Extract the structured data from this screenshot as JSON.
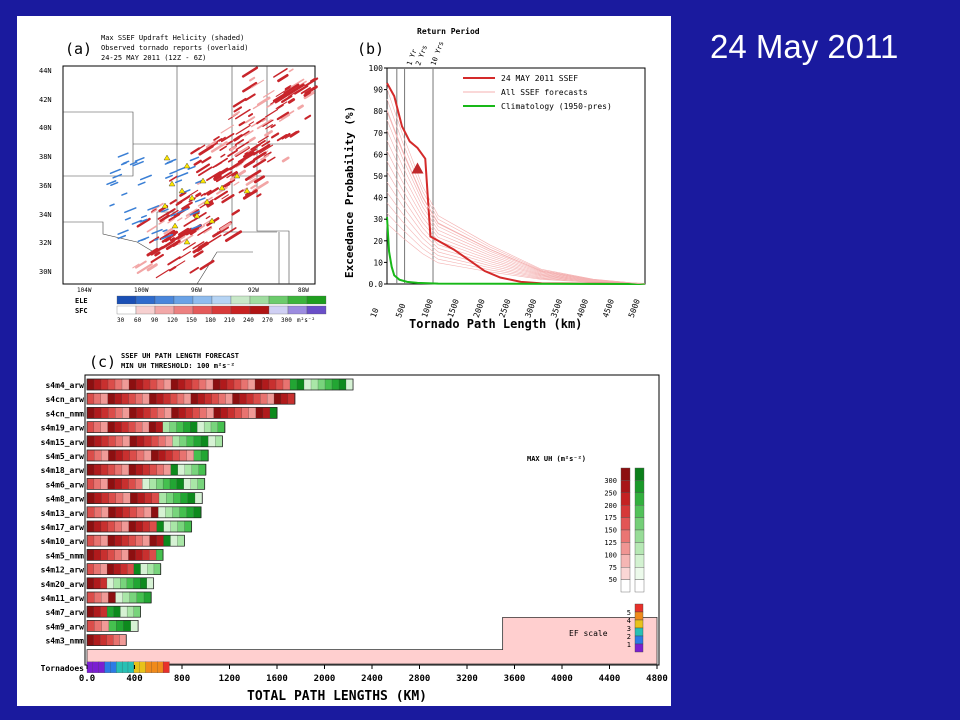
{
  "slide": {
    "title": "24 May 2011"
  },
  "panel_a": {
    "tag": "(a)",
    "title_lines": [
      "Max SSEF Updraft Helicity (shaded)",
      "Observed tornado reports (overlaid)",
      "24-25 MAY 2011 (12Z - 6Z)"
    ],
    "lat_labels": [
      "44N",
      "42N",
      "40N",
      "38N",
      "36N",
      "34N",
      "32N",
      "30N"
    ],
    "lon_labels": [
      "104W",
      "100W",
      "96W",
      "92W",
      "88W"
    ],
    "legend_rows": [
      "ELE",
      "SFC"
    ],
    "legend_ticks": [
      "30",
      "60",
      "90",
      "120",
      "150",
      "180",
      "210",
      "240",
      "270",
      "300"
    ],
    "legend_unit": "m²s⁻²",
    "colors": {
      "uh_red": "#c8252b",
      "uh_blue": "#3a7fd5",
      "tornado": "#ffe800"
    }
  },
  "panel_b": {
    "tag": "(b)",
    "return_period_title": "Return Period",
    "return_period_labels": [
      "1 Yr",
      "2 Yrs",
      "10 Yrs"
    ],
    "ylabel": "Exceedance Probability (%)",
    "xlabel": "Tornado Path Length (km)",
    "legend": [
      "24 MAY 2011 SSEF",
      "All SSEF forecasts",
      "Climatology (1950-pres)"
    ],
    "chart_data": {
      "type": "line",
      "xlabel": "Tornado Path Length (km)",
      "ylabel": "Exceedance Probability (%)",
      "xtick_labels": [
        "10",
        "500",
        "1000",
        "1500",
        "2000",
        "2500",
        "3000",
        "3500",
        "4000",
        "4500",
        "5000"
      ],
      "ytick_labels": [
        "0.0",
        "10",
        "20",
        "30",
        "40",
        "50",
        "60",
        "70",
        "80",
        "90",
        "100"
      ],
      "xlim": [
        10,
        5000
      ],
      "ylim": [
        0,
        100
      ],
      "return_periods_km": [
        200,
        350,
        900
      ],
      "observed_marker": {
        "x": 600,
        "y": 53
      },
      "series": [
        {
          "name": "24 MAY 2011 SSEF",
          "color": "#d42a2a",
          "x": [
            10,
            150,
            300,
            450,
            600,
            750,
            850,
            1000,
            1300,
            1600,
            1900,
            2200,
            2600,
            3000,
            5000
          ],
          "y": [
            93,
            87,
            73,
            66,
            63,
            58,
            22,
            20,
            16,
            11,
            6,
            3,
            1,
            0.3,
            0
          ]
        },
        {
          "name": "Climatology (1950-pres)",
          "color": "#18b818",
          "x": [
            10,
            50,
            100,
            150,
            250,
            400,
            600,
            1000,
            5000
          ],
          "y": [
            31,
            15,
            8,
            4,
            2,
            1,
            0.5,
            0.2,
            0
          ]
        },
        {
          "name": "All SSEF forecasts",
          "color": "#f4b2b2",
          "x": [
            10,
            300,
            700,
            1000,
            1500,
            2000,
            2600,
            3000,
            4000,
            5000
          ],
          "y": [
            80,
            62,
            40,
            28,
            22,
            16,
            10,
            6,
            2,
            0
          ]
        }
      ]
    }
  },
  "panel_c": {
    "tag": "(c)",
    "title_lines": [
      "SSEF UH PATH LENGTH FORECAST",
      "MIN UH THRESHOLD: 100 m²s⁻²"
    ],
    "xlabel": "TOTAL PATH LENGTHS (KM)",
    "legend_title": "MAX UH (m²s⁻²)",
    "legend_values": [
      "300",
      "250",
      "200",
      "175",
      "150",
      "125",
      "100",
      "75",
      "50"
    ],
    "ef_label": "EF scale",
    "ef_values": [
      "5",
      "4",
      "3",
      "2",
      "1"
    ],
    "chart_data": {
      "type": "bar",
      "xlim": [
        0,
        4800
      ],
      "xtick_labels": [
        "0.0",
        "400",
        "800",
        "1200",
        "1600",
        "2000",
        "2400",
        "2800",
        "3200",
        "3600",
        "4000",
        "4400",
        "4800"
      ],
      "categories": [
        "s4m4_arw",
        "s4cn_arw",
        "s4cn_nmm",
        "s4m19_arw",
        "s4m15_arw",
        "s4m5_arw",
        "s4m18_arw",
        "s4m6_arw",
        "s4m8_arw",
        "s4m13_arw",
        "s4m17_arw",
        "s4m10_arw",
        "s4m5_nmm",
        "s4m12_arw",
        "s4m20_arw",
        "s4m11_arw",
        "s4m7_arw",
        "s4m9_arw",
        "s4m3_nmm",
        "Tornadoes"
      ],
      "values": [
        2240,
        1750,
        1600,
        1160,
        1140,
        1020,
        1000,
        990,
        970,
        960,
        880,
        820,
        640,
        620,
        560,
        540,
        450,
        430,
        330,
        690
      ],
      "red_fraction": [
        0.74,
        1.0,
        0.95,
        0.55,
        0.6,
        0.85,
        0.7,
        0.46,
        0.62,
        0.6,
        0.65,
        0.78,
        0.86,
        0.55,
        0.3,
        0.4,
        0.3,
        0.35,
        1.0,
        0
      ],
      "climatology_step": {
        "x_start": 3500,
        "lower_y_category": "s4m3_nmm",
        "upper_y_category": "s4m9_arw"
      }
    }
  }
}
